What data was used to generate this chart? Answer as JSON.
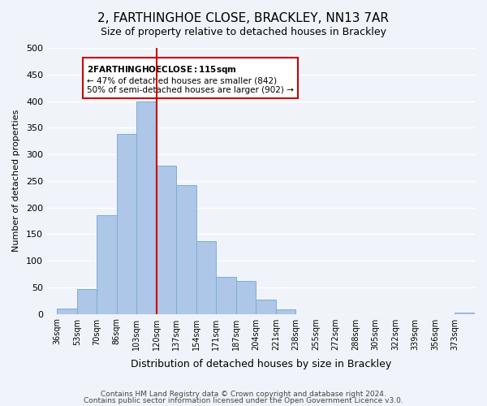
{
  "title": "2, FARTHINGHOE CLOSE, BRACKLEY, NN13 7AR",
  "subtitle": "Size of property relative to detached houses in Brackley",
  "xlabel": "Distribution of detached houses by size in Brackley",
  "ylabel": "Number of detached properties",
  "bin_labels": [
    "36sqm",
    "53sqm",
    "70sqm",
    "86sqm",
    "103sqm",
    "120sqm",
    "137sqm",
    "154sqm",
    "171sqm",
    "187sqm",
    "204sqm",
    "221sqm",
    "238sqm",
    "255sqm",
    "272sqm",
    "288sqm",
    "305sqm",
    "322sqm",
    "339sqm",
    "356sqm",
    "373sqm"
  ],
  "bar_heights": [
    10,
    47,
    185,
    338,
    400,
    278,
    242,
    137,
    70,
    62,
    26,
    8,
    0,
    0,
    0,
    0,
    0,
    0,
    0,
    0,
    3
  ],
  "bar_color": "#aec6e8",
  "bar_edge_color": "#7bafd4",
  "vline_x": 5,
  "vline_color": "#cc0000",
  "ylim": [
    0,
    500
  ],
  "yticks": [
    0,
    50,
    100,
    150,
    200,
    250,
    300,
    350,
    400,
    450,
    500
  ],
  "annotation_title": "2 FARTHINGHOE CLOSE: 115sqm",
  "annotation_line1": "← 47% of detached houses are smaller (842)",
  "annotation_line2": "50% of semi-detached houses are larger (902) →",
  "annotation_box_color": "#ffffff",
  "annotation_box_edge": "#cc0000",
  "footer1": "Contains HM Land Registry data © Crown copyright and database right 2024.",
  "footer2": "Contains public sector information licensed under the Open Government Licence v3.0.",
  "background_color": "#f0f4fa",
  "grid_color": "#ffffff"
}
